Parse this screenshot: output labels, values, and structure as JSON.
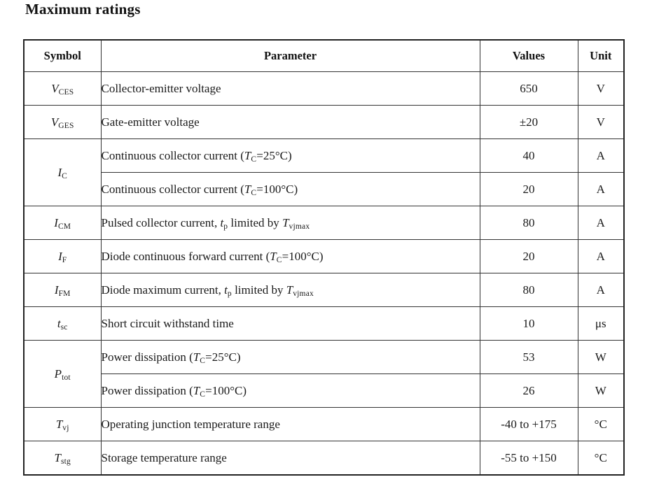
{
  "page": {
    "title": "Maximum ratings"
  },
  "table": {
    "headers": [
      "Symbol",
      "Parameter",
      "Values",
      "Unit"
    ],
    "groups": [
      {
        "symbol": [
          [
            "i",
            "V"
          ],
          [
            "sub",
            "CES"
          ]
        ],
        "entries": [
          {
            "parameter": [
              [
                "n",
                "Collector-emitter voltage"
              ]
            ],
            "value": "650",
            "unit": "V"
          }
        ]
      },
      {
        "symbol": [
          [
            "i",
            "V"
          ],
          [
            "sub",
            "GES"
          ]
        ],
        "entries": [
          {
            "parameter": [
              [
                "n",
                "Gate-emitter voltage"
              ]
            ],
            "value": "±20",
            "unit": "V"
          }
        ]
      },
      {
        "symbol": [
          [
            "i",
            "I"
          ],
          [
            "sub",
            "C"
          ]
        ],
        "entries": [
          {
            "parameter": [
              [
                "n",
                "Continuous collector current ("
              ],
              [
                "i",
                "T"
              ],
              [
                "sub",
                "C"
              ],
              [
                "n",
                "=25°C)"
              ]
            ],
            "value": "40",
            "unit": "A"
          },
          {
            "parameter": [
              [
                "n",
                "Continuous collector current ("
              ],
              [
                "i",
                "T"
              ],
              [
                "sub",
                "C"
              ],
              [
                "n",
                "=100°C)"
              ]
            ],
            "value": "20",
            "unit": "A"
          }
        ]
      },
      {
        "symbol": [
          [
            "i",
            "I"
          ],
          [
            "sub",
            "CM"
          ]
        ],
        "entries": [
          {
            "parameter": [
              [
                "n",
                "Pulsed collector current, "
              ],
              [
                "i",
                "t"
              ],
              [
                "sub",
                "p"
              ],
              [
                "n",
                " limited by "
              ],
              [
                "i",
                "T"
              ],
              [
                "sub",
                "vjmax"
              ]
            ],
            "value": "80",
            "unit": "A"
          }
        ]
      },
      {
        "symbol": [
          [
            "i",
            "I"
          ],
          [
            "sub",
            "F"
          ]
        ],
        "entries": [
          {
            "parameter": [
              [
                "n",
                "Diode continuous forward current ("
              ],
              [
                "i",
                "T"
              ],
              [
                "sub",
                "C"
              ],
              [
                "n",
                "=100°C)"
              ]
            ],
            "value": "20",
            "unit": "A"
          }
        ]
      },
      {
        "symbol": [
          [
            "i",
            "I"
          ],
          [
            "sub",
            "FM"
          ]
        ],
        "entries": [
          {
            "parameter": [
              [
                "n",
                "Diode maximum current, "
              ],
              [
                "i",
                "t"
              ],
              [
                "sub",
                "p"
              ],
              [
                "n",
                " limited by "
              ],
              [
                "i",
                "T"
              ],
              [
                "sub",
                "vjmax"
              ]
            ],
            "value": "80",
            "unit": "A"
          }
        ]
      },
      {
        "symbol": [
          [
            "i",
            "t"
          ],
          [
            "sub",
            "sc"
          ]
        ],
        "entries": [
          {
            "parameter": [
              [
                "n",
                "Short circuit withstand time"
              ]
            ],
            "value": "10",
            "unit": "μs"
          }
        ]
      },
      {
        "symbol": [
          [
            "i",
            "P"
          ],
          [
            "sub",
            "tot"
          ]
        ],
        "entries": [
          {
            "parameter": [
              [
                "n",
                "Power dissipation ("
              ],
              [
                "i",
                "T"
              ],
              [
                "sub",
                "C"
              ],
              [
                "n",
                "=25°C)"
              ]
            ],
            "value": "53",
            "unit": "W"
          },
          {
            "parameter": [
              [
                "n",
                "Power dissipation ("
              ],
              [
                "i",
                "T"
              ],
              [
                "sub",
                "C"
              ],
              [
                "n",
                "=100°C)"
              ]
            ],
            "value": "26",
            "unit": "W"
          }
        ]
      },
      {
        "symbol": [
          [
            "i",
            "T"
          ],
          [
            "sub",
            "vj"
          ]
        ],
        "entries": [
          {
            "parameter": [
              [
                "n",
                "Operating junction temperature range"
              ]
            ],
            "value": "-40 to +175",
            "unit": "°C"
          }
        ]
      },
      {
        "symbol": [
          [
            "i",
            "T"
          ],
          [
            "sub",
            "stg"
          ]
        ],
        "entries": [
          {
            "parameter": [
              [
                "n",
                "Storage temperature range"
              ]
            ],
            "value": "-55 to +150",
            "unit": "°C"
          }
        ]
      }
    ]
  }
}
